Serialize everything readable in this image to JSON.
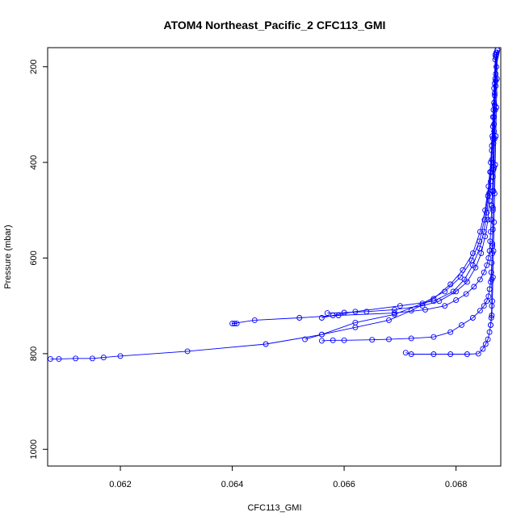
{
  "chart_data": {
    "type": "line",
    "title": "ATOM4 Northeast_Pacific_2 CFC113_GMI",
    "xlabel": "CFC113_GMI",
    "ylabel": "Pressure (mbar)",
    "xlim": [
      0.0607,
      0.0688
    ],
    "ylim": [
      1035,
      160
    ],
    "y_axis_inverted": true,
    "x_ticks": [
      0.062,
      0.064,
      0.066,
      0.068
    ],
    "x_tick_labels": [
      "0.062",
      "0.064",
      "0.066",
      "0.068"
    ],
    "y_ticks": [
      200,
      400,
      600,
      800,
      1000
    ],
    "y_tick_labels": [
      "200",
      "400",
      "600",
      "800",
      "1000"
    ],
    "grid": false,
    "legend": "none",
    "color": "#0000ff",
    "series": [
      {
        "x": [
          0.06874,
          0.06872,
          0.06871,
          0.06869,
          0.06868,
          0.06867,
          0.06866,
          0.06866,
          0.06865,
          0.06864,
          0.06863,
          0.06862,
          0.06861,
          0.0686,
          0.06858,
          0.06855,
          0.0685,
          0.06843,
          0.06832,
          0.06818,
          0.068,
          0.0678,
          0.06745,
          0.0669,
          0.0659,
          0.0652,
          0.0644,
          0.064,
          0.06404,
          0.06408
        ],
        "y": [
          165,
          200,
          240,
          280,
          320,
          360,
          400,
          430,
          460,
          490,
          520,
          545,
          565,
          585,
          600,
          615,
          630,
          645,
          660,
          675,
          688,
          700,
          708,
          715,
          720,
          725,
          730,
          737,
          737,
          737
        ]
      },
      {
        "x": [
          0.06873,
          0.06871,
          0.06869,
          0.06868,
          0.06866,
          0.06864,
          0.06862,
          0.0686,
          0.06857,
          0.06852,
          0.06845,
          0.06835,
          0.0682,
          0.068,
          0.0677,
          0.0674,
          0.0669,
          0.0664,
          0.066,
          0.0657
        ],
        "y": [
          170,
          215,
          260,
          305,
          350,
          395,
          440,
          480,
          520,
          555,
          590,
          620,
          650,
          670,
          690,
          700,
          708,
          712,
          714,
          715
        ]
      },
      {
        "x": [
          0.06872,
          0.0687,
          0.06868,
          0.06866,
          0.06864,
          0.06862,
          0.06859,
          0.06855,
          0.0685,
          0.06842,
          0.0683,
          0.06815,
          0.06795,
          0.0676,
          0.067,
          0.0662,
          0.0658,
          0.0656
        ],
        "y": [
          175,
          225,
          275,
          325,
          375,
          420,
          465,
          505,
          545,
          580,
          615,
          645,
          670,
          690,
          700,
          712,
          720,
          725
        ]
      },
      {
        "x": [
          0.06871,
          0.06869,
          0.06867,
          0.06865,
          0.06862,
          0.06858,
          0.06852,
          0.06843,
          0.0683,
          0.06812,
          0.0679,
          0.0676,
          0.0672,
          0.0668,
          0.0662,
          0.0656,
          0.0653
        ],
        "y": [
          180,
          235,
          290,
          345,
          400,
          450,
          500,
          545,
          590,
          625,
          655,
          685,
          710,
          730,
          745,
          760,
          770
        ]
      },
      {
        "x": [
          0.0687,
          0.06868,
          0.06866,
          0.06864,
          0.06861,
          0.06857,
          0.06851,
          0.06842,
          0.06828,
          0.06808,
          0.0678,
          0.0674,
          0.0669,
          0.0662,
          0.0656,
          0.0646,
          0.0632,
          0.062,
          0.0617,
          0.0615,
          0.0612,
          0.0609,
          0.06075
        ],
        "y": [
          185,
          245,
          305,
          365,
          420,
          470,
          520,
          565,
          605,
          640,
          670,
          695,
          718,
          735,
          760,
          780,
          795,
          805,
          808,
          810,
          810,
          811,
          811
        ]
      },
      {
        "x": [
          0.06872,
          0.06871,
          0.0687,
          0.06869,
          0.06868,
          0.06867,
          0.06866,
          0.06866,
          0.06865,
          0.06865,
          0.06864,
          0.06863,
          0.06862,
          0.0686,
          0.06858,
          0.06855,
          0.0685,
          0.06843,
          0.0683,
          0.0681,
          0.0679,
          0.0676,
          0.0672,
          0.0668,
          0.0665,
          0.066,
          0.0658,
          0.0656
        ],
        "y": [
          170,
          230,
          290,
          350,
          410,
          460,
          500,
          540,
          570,
          590,
          610,
          630,
          650,
          665,
          680,
          690,
          700,
          710,
          725,
          740,
          755,
          765,
          768,
          770,
          771,
          772,
          772,
          773
        ]
      },
      {
        "x": [
          0.06874,
          0.06873,
          0.06872,
          0.06871,
          0.0687,
          0.06869,
          0.06868,
          0.06867,
          0.06866,
          0.06865,
          0.06864,
          0.06862,
          0.0686,
          0.06857,
          0.06853,
          0.06848,
          0.0684,
          0.0682,
          0.0679,
          0.0676,
          0.0672,
          0.0671
        ],
        "y": [
          165,
          225,
          285,
          345,
          405,
          465,
          525,
          585,
          640,
          690,
          720,
          740,
          755,
          770,
          780,
          790,
          800,
          801,
          801,
          801,
          801,
          798
        ]
      },
      {
        "x": [
          0.0687,
          0.06869,
          0.06868,
          0.06867,
          0.06866,
          0.06865,
          0.06864,
          0.06864,
          0.06863,
          0.06862
        ],
        "y": [
          175,
          255,
          335,
          415,
          495,
          575,
          645,
          700,
          725,
          740
        ]
      }
    ]
  }
}
